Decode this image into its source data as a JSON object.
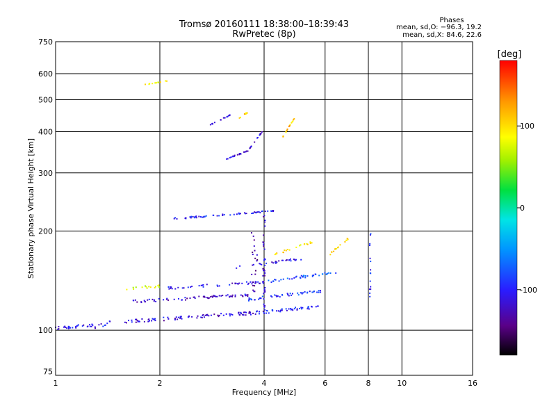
{
  "chart_data": {
    "type": "scatter",
    "title": "Tromsø 20160111 18:38:00–18:39:43",
    "subtitle": "RwPretec (8p)",
    "phases": {
      "heading": "Phases",
      "line_o": "mean, sd,O: −96.3, 19.2",
      "line_x": "mean, sd,X:  84.6, 22.6"
    },
    "xlabel": "Frequency [MHz]",
    "ylabel": "Stationary phase Virtual Height [km]",
    "xscale": "log",
    "yscale": "log",
    "xlim": [
      1,
      16
    ],
    "ylim": [
      73,
      750
    ],
    "xticks": [
      1,
      2,
      4,
      6,
      8,
      10,
      16
    ],
    "yticks": [
      75,
      100,
      200,
      300,
      400,
      500,
      600,
      750
    ],
    "x_gridlines": [
      2,
      4,
      6,
      8,
      10
    ],
    "y_gridlines": [
      100,
      200,
      300,
      400,
      500,
      600
    ],
    "colorbar": {
      "label": "[deg]",
      "ticks": [
        100,
        0,
        -100
      ],
      "range": [
        -180,
        180
      ]
    },
    "traces": [
      {
        "x0": 1.0,
        "x1": 1.3,
        "h0": 101,
        "h1": 104,
        "phase": -110,
        "n": 30
      },
      {
        "x0": 1.3,
        "x1": 1.45,
        "h0": 102,
        "h1": 106,
        "phase": -105,
        "n": 10
      },
      {
        "x0": 1.55,
        "x1": 3.8,
        "h0": 106,
        "h1": 113,
        "phase": -115,
        "n": 90
      },
      {
        "x0": 3.8,
        "x1": 5.8,
        "h0": 113,
        "h1": 118,
        "phase": -95,
        "n": 45
      },
      {
        "x0": 1.65,
        "x1": 3.6,
        "h0": 122,
        "h1": 128,
        "phase": -118,
        "n": 70
      },
      {
        "x0": 3.6,
        "x1": 6.0,
        "h0": 124,
        "h1": 132,
        "phase": -90,
        "n": 50
      },
      {
        "x0": 1.6,
        "x1": 2.0,
        "h0": 134,
        "h1": 136,
        "phase": 80,
        "n": 15
      },
      {
        "x0": 2.1,
        "x1": 4.0,
        "h0": 134,
        "h1": 140,
        "phase": -108,
        "n": 45
      },
      {
        "x0": 4.0,
        "x1": 6.5,
        "h0": 140,
        "h1": 150,
        "phase": -80,
        "n": 40
      },
      {
        "x0": 3.3,
        "x1": 5.2,
        "h0": 155,
        "h1": 165,
        "phase": -110,
        "n": 30
      },
      {
        "x0": 4.3,
        "x1": 5.5,
        "h0": 170,
        "h1": 185,
        "phase": 100,
        "n": 20
      },
      {
        "x0": 6.2,
        "x1": 7.0,
        "h0": 170,
        "h1": 190,
        "phase": 95,
        "n": 15
      },
      {
        "x0": 2.2,
        "x1": 4.3,
        "h0": 218,
        "h1": 230,
        "phase": -100,
        "n": 60
      },
      {
        "x0": 3.1,
        "x1": 3.6,
        "h0": 330,
        "h1": 350,
        "phase": -120,
        "n": 20
      },
      {
        "x0": 3.6,
        "x1": 3.95,
        "h0": 350,
        "h1": 400,
        "phase": -115,
        "n": 15
      },
      {
        "x0": 2.8,
        "x1": 3.2,
        "h0": 420,
        "h1": 450,
        "phase": -120,
        "n": 15
      },
      {
        "x0": 3.3,
        "x1": 3.6,
        "h0": 430,
        "h1": 460,
        "phase": 105,
        "n": 12
      },
      {
        "x0": 4.5,
        "x1": 4.9,
        "h0": 380,
        "h1": 440,
        "phase": 110,
        "n": 18
      },
      {
        "x0": 1.8,
        "x1": 2.2,
        "h0": 555,
        "h1": 575,
        "phase": 90,
        "n": 12
      }
    ],
    "vertical_streaks": [
      {
        "x": 4.0,
        "h0": 105,
        "h1": 225,
        "phase": -120,
        "n": 40
      },
      {
        "x": 3.7,
        "x_end": 3.8,
        "h0": 130,
        "h1": 200,
        "phase": -130,
        "n": 20
      },
      {
        "x": 8.1,
        "h0": 120,
        "h1": 200,
        "phase": -100,
        "n": 15
      }
    ]
  }
}
